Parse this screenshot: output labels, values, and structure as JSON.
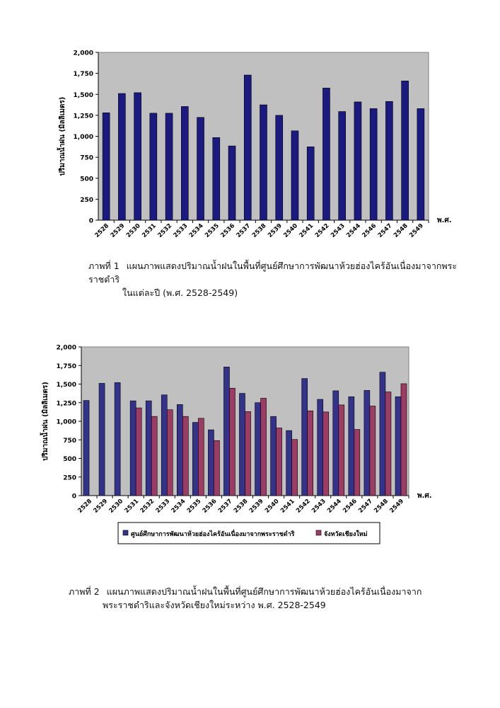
{
  "figures": [
    {
      "caption_prefix": "ภาพที่ 1",
      "caption_line1": "แผนภาพแสดงปริมาณน้ำฝนในพื้นที่ศูนย์ศึกษาการพัฒนาห้วยฮ่องไคร้อันเนื่องมาจากพระราชดำริ",
      "caption_line2": "ในแต่ละปี (พ.ศ. 2528-2549)"
    },
    {
      "caption_prefix": "ภาพที่ 2",
      "caption_line1": "แผนภาพแสดงปริมาณน้ำฝนในพื้นที่ศูนย์ศึกษาการพัฒนาห้วยฮ่องไคร้อันเนื่องมาจาก",
      "caption_line2": "พระราชดำริและจังหวัดเชียงใหม่ระหว่าง พ.ศ. 2528-2549"
    }
  ],
  "chart_data": [
    {
      "type": "bar",
      "ylabel": "ปริมาณน้ำฝน (มิลลิเมตร)",
      "xlabel": "พ.ศ.",
      "ylim": [
        0,
        2000
      ],
      "yticks": [
        "0",
        "250",
        "500",
        "750",
        "1,000",
        "1,250",
        "1,500",
        "1,750",
        "2,000"
      ],
      "grid": false,
      "categories": [
        "2528",
        "2529",
        "2530",
        "2531",
        "2532",
        "2533",
        "2534",
        "2535",
        "2536",
        "2537",
        "2538",
        "2539",
        "2540",
        "2541",
        "2542",
        "2543",
        "2544",
        "2546",
        "2547",
        "2548",
        "2549"
      ],
      "series": [
        {
          "values": [
            1280,
            1510,
            1520,
            1275,
            1275,
            1355,
            1225,
            985,
            885,
            1730,
            1375,
            1250,
            1065,
            875,
            1575,
            1295,
            1410,
            1330,
            1415,
            1660,
            1330
          ],
          "color": "#1a1a80"
        }
      ]
    },
    {
      "type": "bar",
      "ylabel": "ปริมาณน้ำฝน (มิลลิเมตร)",
      "xlabel": "พ.ศ.",
      "ylim": [
        0,
        2000
      ],
      "yticks": [
        "0",
        "250",
        "500",
        "750",
        "1,000",
        "1,250",
        "1,500",
        "1,750",
        "2,000"
      ],
      "grid": false,
      "legend_position": "bottom",
      "categories": [
        "2528",
        "2529",
        "2530",
        "2531",
        "2532",
        "2533",
        "2534",
        "2535",
        "2536",
        "2537",
        "2538",
        "2539",
        "2540",
        "2541",
        "2542",
        "2543",
        "2544",
        "2546",
        "2547",
        "2548",
        "2549"
      ],
      "series": [
        {
          "name": "ศูนย์ศึกษาการพัฒนาห้วยฮ่องไคร้อันเนื่องมาจากพระราชดำริ",
          "color": "#33338c",
          "values": [
            1280,
            1510,
            1520,
            1275,
            1275,
            1355,
            1225,
            985,
            885,
            1730,
            1375,
            1250,
            1065,
            875,
            1575,
            1295,
            1410,
            1330,
            1415,
            1660,
            1330
          ]
        },
        {
          "name": "จังหวัดเชียงใหม่",
          "color": "#9c3c64",
          "values": [
            null,
            null,
            null,
            1180,
            1065,
            1155,
            1065,
            1040,
            740,
            1445,
            1130,
            1310,
            910,
            755,
            1140,
            1125,
            1220,
            890,
            1205,
            1395,
            1505
          ]
        }
      ]
    }
  ]
}
